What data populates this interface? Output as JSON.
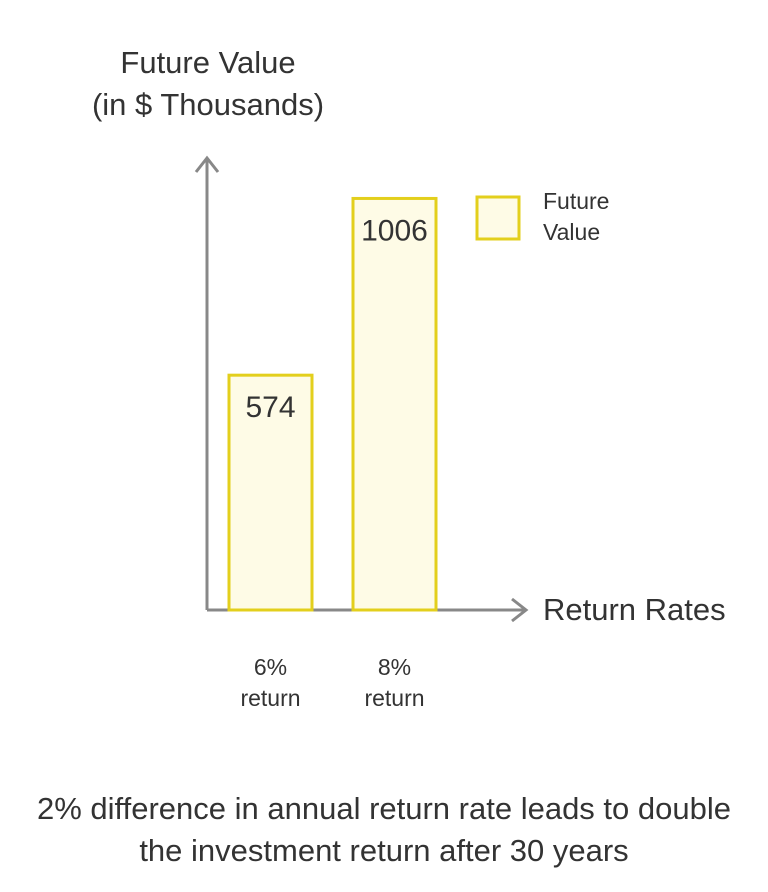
{
  "chart_data": {
    "type": "bar",
    "y_label": [
      "Future Value",
      "(in $ Thousands)"
    ],
    "x_label": "Return Rates",
    "categories": [
      "6% return",
      "8% return"
    ],
    "series": [
      {
        "name": "Future Value",
        "color": "#e3cf1c",
        "values": [
          574,
          1006
        ]
      }
    ],
    "ylim": [
      0,
      1100
    ],
    "legend": "top-right",
    "caption": "2% difference in annual return rate leads to double the investment return after 30 years"
  }
}
